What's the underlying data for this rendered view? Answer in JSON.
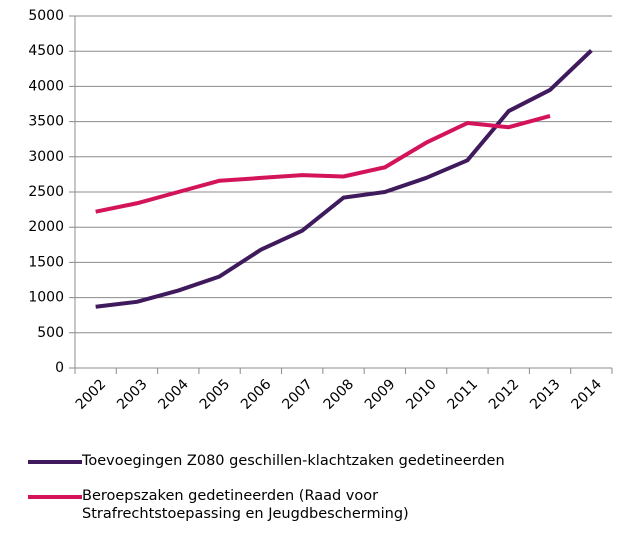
{
  "chart_data": {
    "type": "line",
    "categories": [
      "2002",
      "2003",
      "2004",
      "2005",
      "2006",
      "2007",
      "2008",
      "2009",
      "2010",
      "2011",
      "2012",
      "2013",
      "2014"
    ],
    "series": [
      {
        "name": "Toevoegingen Z080 geschillen-klachtzaken gedetineerden",
        "color": "#3f1a5c",
        "values": [
          870,
          940,
          1100,
          1300,
          1680,
          1950,
          2420,
          2500,
          2700,
          2950,
          3650,
          3950,
          4510
        ]
      },
      {
        "name": "Beroepszaken gedetineerden (Raad voor Strafrechtstoepassing en Jeugdbescherming)",
        "color": "#d4145a",
        "values": [
          2220,
          2340,
          2500,
          2660,
          2700,
          2740,
          2720,
          2850,
          3200,
          3480,
          3420,
          3580,
          null
        ]
      }
    ],
    "ylim": [
      0,
      5000
    ],
    "yticks": [
      0,
      500,
      1000,
      1500,
      2000,
      2500,
      3000,
      3500,
      4000,
      4500,
      5000
    ],
    "grid": true
  }
}
